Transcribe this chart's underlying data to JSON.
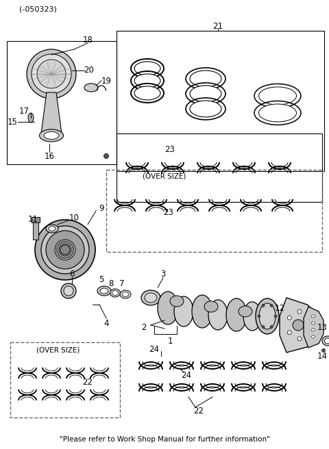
{
  "bg_color": "#ffffff",
  "part_code": "(-050323)",
  "footer_text": "\"Please refer to Work Shop Manual for further information\"",
  "line_color": "#000000",
  "dashed_color": "#888888"
}
